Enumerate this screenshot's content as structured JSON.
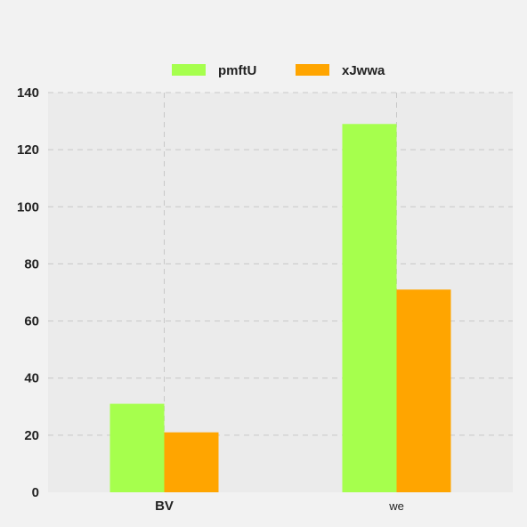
{
  "chart_data": {
    "type": "bar",
    "title": "",
    "xlabel": "",
    "ylabel": "",
    "categories": [
      "BV",
      "we"
    ],
    "series": [
      {
        "name": "pmftU",
        "values": [
          31,
          129
        ],
        "color": "#a6ff4d"
      },
      {
        "name": "xJwwa",
        "values": [
          21,
          71
        ],
        "color": "#ffa500"
      }
    ],
    "ylim": [
      0,
      140
    ],
    "yticks": [
      0,
      20,
      40,
      60,
      80,
      100,
      120,
      140
    ],
    "grid": true,
    "legend_position": "top-center",
    "colors": {
      "page_background": "#f2f2f2",
      "plot_background": "#ebebeb",
      "grid": "#c8c8c8"
    }
  }
}
